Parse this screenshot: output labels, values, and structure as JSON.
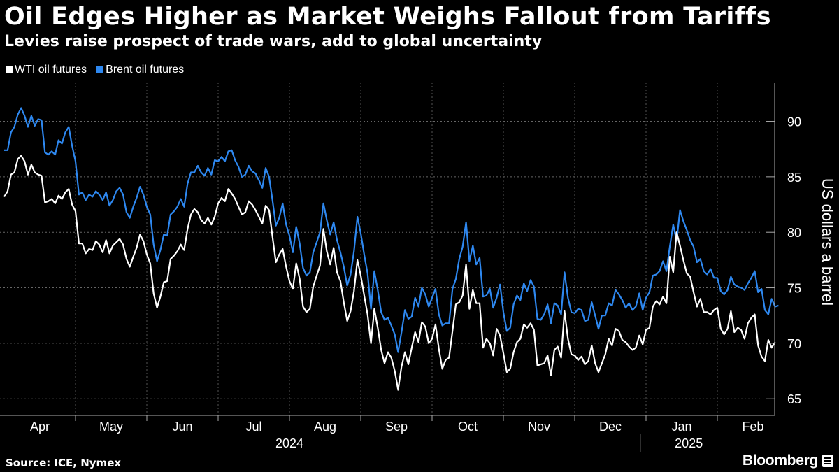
{
  "title": "Oil Edges Higher as Market Weighs Fallout from Tariffs",
  "subtitle": "Levies raise prospect of trade wars, add to global uncertainty",
  "source": "Source: ICE, Nymex",
  "brand": "Bloomberg",
  "chart_data": {
    "type": "line",
    "ylabel": "US dollars a barrel",
    "ylim": [
      63.5,
      93.5
    ],
    "yticks": [
      65,
      70,
      75,
      80,
      85,
      90
    ],
    "month_labels": [
      "Apr",
      "May",
      "Jun",
      "Jul",
      "Aug",
      "Sep",
      "Oct",
      "Nov",
      "Dec",
      "Jan",
      "Feb"
    ],
    "year_labels": [
      {
        "label": "2024",
        "month_index": 4
      },
      {
        "label": "2025",
        "month_index": 9.6
      }
    ],
    "x_range": [
      0,
      11.65
    ],
    "colors": {
      "WTI": "#ffffff",
      "Brent": "#2e88f0"
    },
    "series": [
      {
        "name": "WTI oil futures",
        "key": "WTI",
        "x_step_months": 0.04762,
        "values": [
          83.2,
          83.7,
          85.2,
          85.4,
          86.6,
          86.9,
          86.4,
          85.2,
          86.1,
          85.4,
          85.2,
          85.1,
          82.7,
          82.8,
          83.0,
          82.6,
          83.3,
          83.0,
          83.6,
          83.9,
          82.5,
          81.9,
          79.0,
          79.0,
          78.1,
          78.5,
          78.4,
          79.2,
          78.9,
          78.2,
          79.3,
          78.1,
          78.8,
          79.1,
          79.4,
          78.9,
          77.6,
          76.9,
          77.8,
          78.6,
          79.8,
          79.2,
          78.0,
          77.2,
          74.5,
          73.2,
          74.2,
          75.5,
          75.6,
          77.6,
          77.9,
          78.3,
          78.9,
          78.4,
          80.3,
          81.6,
          82.1,
          81.8,
          81.1,
          80.8,
          81.3,
          80.7,
          81.4,
          82.6,
          83.1,
          82.8,
          83.9,
          83.5,
          83.0,
          82.3,
          81.6,
          81.8,
          82.8,
          82.5,
          82.0,
          81.4,
          80.8,
          82.4,
          82.0,
          79.6,
          77.3,
          78.0,
          78.5,
          76.9,
          75.6,
          74.9,
          77.2,
          75.8,
          73.3,
          72.8,
          73.1,
          75.1,
          76.1,
          77.0,
          80.3,
          78.3,
          77.1,
          78.6,
          76.4,
          75.6,
          73.7,
          72.0,
          72.9,
          74.7,
          77.5,
          76.1,
          74.3,
          72.6,
          70.0,
          73.1,
          71.4,
          69.4,
          68.2,
          69.2,
          68.7,
          67.5,
          65.8,
          67.9,
          69.2,
          68.1,
          69.6,
          71.0,
          70.1,
          71.9,
          71.5,
          70.0,
          70.4,
          71.7,
          69.5,
          67.7,
          68.5,
          68.7,
          71.1,
          73.5,
          73.7,
          74.3,
          77.1,
          73.1,
          74.8,
          73.6,
          73.6,
          69.6,
          70.4,
          70.0,
          68.9,
          71.3,
          70.7,
          69.1,
          67.4,
          67.7,
          69.2,
          70.1,
          70.4,
          71.7,
          71.4,
          71.8,
          71.2,
          68.0,
          68.1,
          68.2,
          68.9,
          67.1,
          69.4,
          69.7,
          68.7,
          72.9,
          70.4,
          69.0,
          68.9,
          68.5,
          68.8,
          68.1,
          68.4,
          69.8,
          68.2,
          67.4,
          68.2,
          69.0,
          70.4,
          69.8,
          71.3,
          71.1,
          70.3,
          70.1,
          69.7,
          69.4,
          69.6,
          70.7,
          69.9,
          71.2,
          71.4,
          73.3,
          73.8,
          73.5,
          74.2,
          73.6,
          77.8,
          76.4,
          80.0,
          78.8,
          77.5,
          76.3,
          76.0,
          74.6,
          73.3,
          74.0,
          72.8,
          72.8,
          72.6,
          73.0,
          73.2,
          71.3,
          70.8,
          71.3,
          72.9,
          71.0,
          71.4,
          71.2,
          70.4,
          71.8,
          72.3,
          72.6,
          69.8,
          68.8,
          68.4,
          70.3,
          69.6,
          70.1
        ]
      },
      {
        "name": "Brent oil futures",
        "key": "Brent",
        "x_step_months": 0.04762,
        "values": [
          87.4,
          87.4,
          89.0,
          89.5,
          90.6,
          91.2,
          90.5,
          89.5,
          90.5,
          89.6,
          90.2,
          90.1,
          87.2,
          87.0,
          87.3,
          87.0,
          88.3,
          88.0,
          89.0,
          89.5,
          87.8,
          86.4,
          83.4,
          83.6,
          82.9,
          83.4,
          83.2,
          83.7,
          83.4,
          82.9,
          83.6,
          82.4,
          82.9,
          83.7,
          84.0,
          83.4,
          81.8,
          81.3,
          82.3,
          83.1,
          84.1,
          83.4,
          82.3,
          81.6,
          78.9,
          77.4,
          78.4,
          79.8,
          79.7,
          81.6,
          81.9,
          82.3,
          83.0,
          82.3,
          84.4,
          85.4,
          85.4,
          86.0,
          85.4,
          85.1,
          85.8,
          85.2,
          86.5,
          86.4,
          86.8,
          86.4,
          87.3,
          87.4,
          86.5,
          85.9,
          85.0,
          85.2,
          86.0,
          85.5,
          85.3,
          84.7,
          84.0,
          85.8,
          85.0,
          82.9,
          80.6,
          81.3,
          82.6,
          80.7,
          79.7,
          78.2,
          80.5,
          79.0,
          76.8,
          76.1,
          76.4,
          78.2,
          79.1,
          80.0,
          82.6,
          81.1,
          79.8,
          80.9,
          79.3,
          78.2,
          76.9,
          75.2,
          76.2,
          78.3,
          81.4,
          79.9,
          78.0,
          76.3,
          73.1,
          76.5,
          74.8,
          72.8,
          72.1,
          72.3,
          71.6,
          70.8,
          69.2,
          71.0,
          73.0,
          72.2,
          72.4,
          74.1,
          73.3,
          75.0,
          74.4,
          73.3,
          74.1,
          74.9,
          72.6,
          71.6,
          71.8,
          71.8,
          74.9,
          75.8,
          77.6,
          78.7,
          80.9,
          77.4,
          78.8,
          77.1,
          77.7,
          74.2,
          74.3,
          74.9,
          73.2,
          74.1,
          75.3,
          72.8,
          71.1,
          71.4,
          73.5,
          74.3,
          73.9,
          75.4,
          74.7,
          75.7,
          75.1,
          72.2,
          72.1,
          72.6,
          73.5,
          71.8,
          73.6,
          73.4,
          72.6,
          76.4,
          74.1,
          72.8,
          72.7,
          73.1,
          73.0,
          72.0,
          72.1,
          73.7,
          72.5,
          71.3,
          72.5,
          72.5,
          73.6,
          73.4,
          74.8,
          74.4,
          73.9,
          73.2,
          73.6,
          73.0,
          73.3,
          74.5,
          73.0,
          74.1,
          74.6,
          76.1,
          76.2,
          76.5,
          77.4,
          76.5,
          78.7,
          80.7,
          79.2,
          82.0,
          81.0,
          80.2,
          79.3,
          78.7,
          77.3,
          77.6,
          76.5,
          76.2,
          76.7,
          75.9,
          75.9,
          74.7,
          74.4,
          74.8,
          76.0,
          75.3,
          75.1,
          75.0,
          74.8,
          75.4,
          75.9,
          76.5,
          74.6,
          74.9,
          73.0,
          72.6,
          74.0,
          73.3,
          73.4
        ]
      }
    ]
  }
}
